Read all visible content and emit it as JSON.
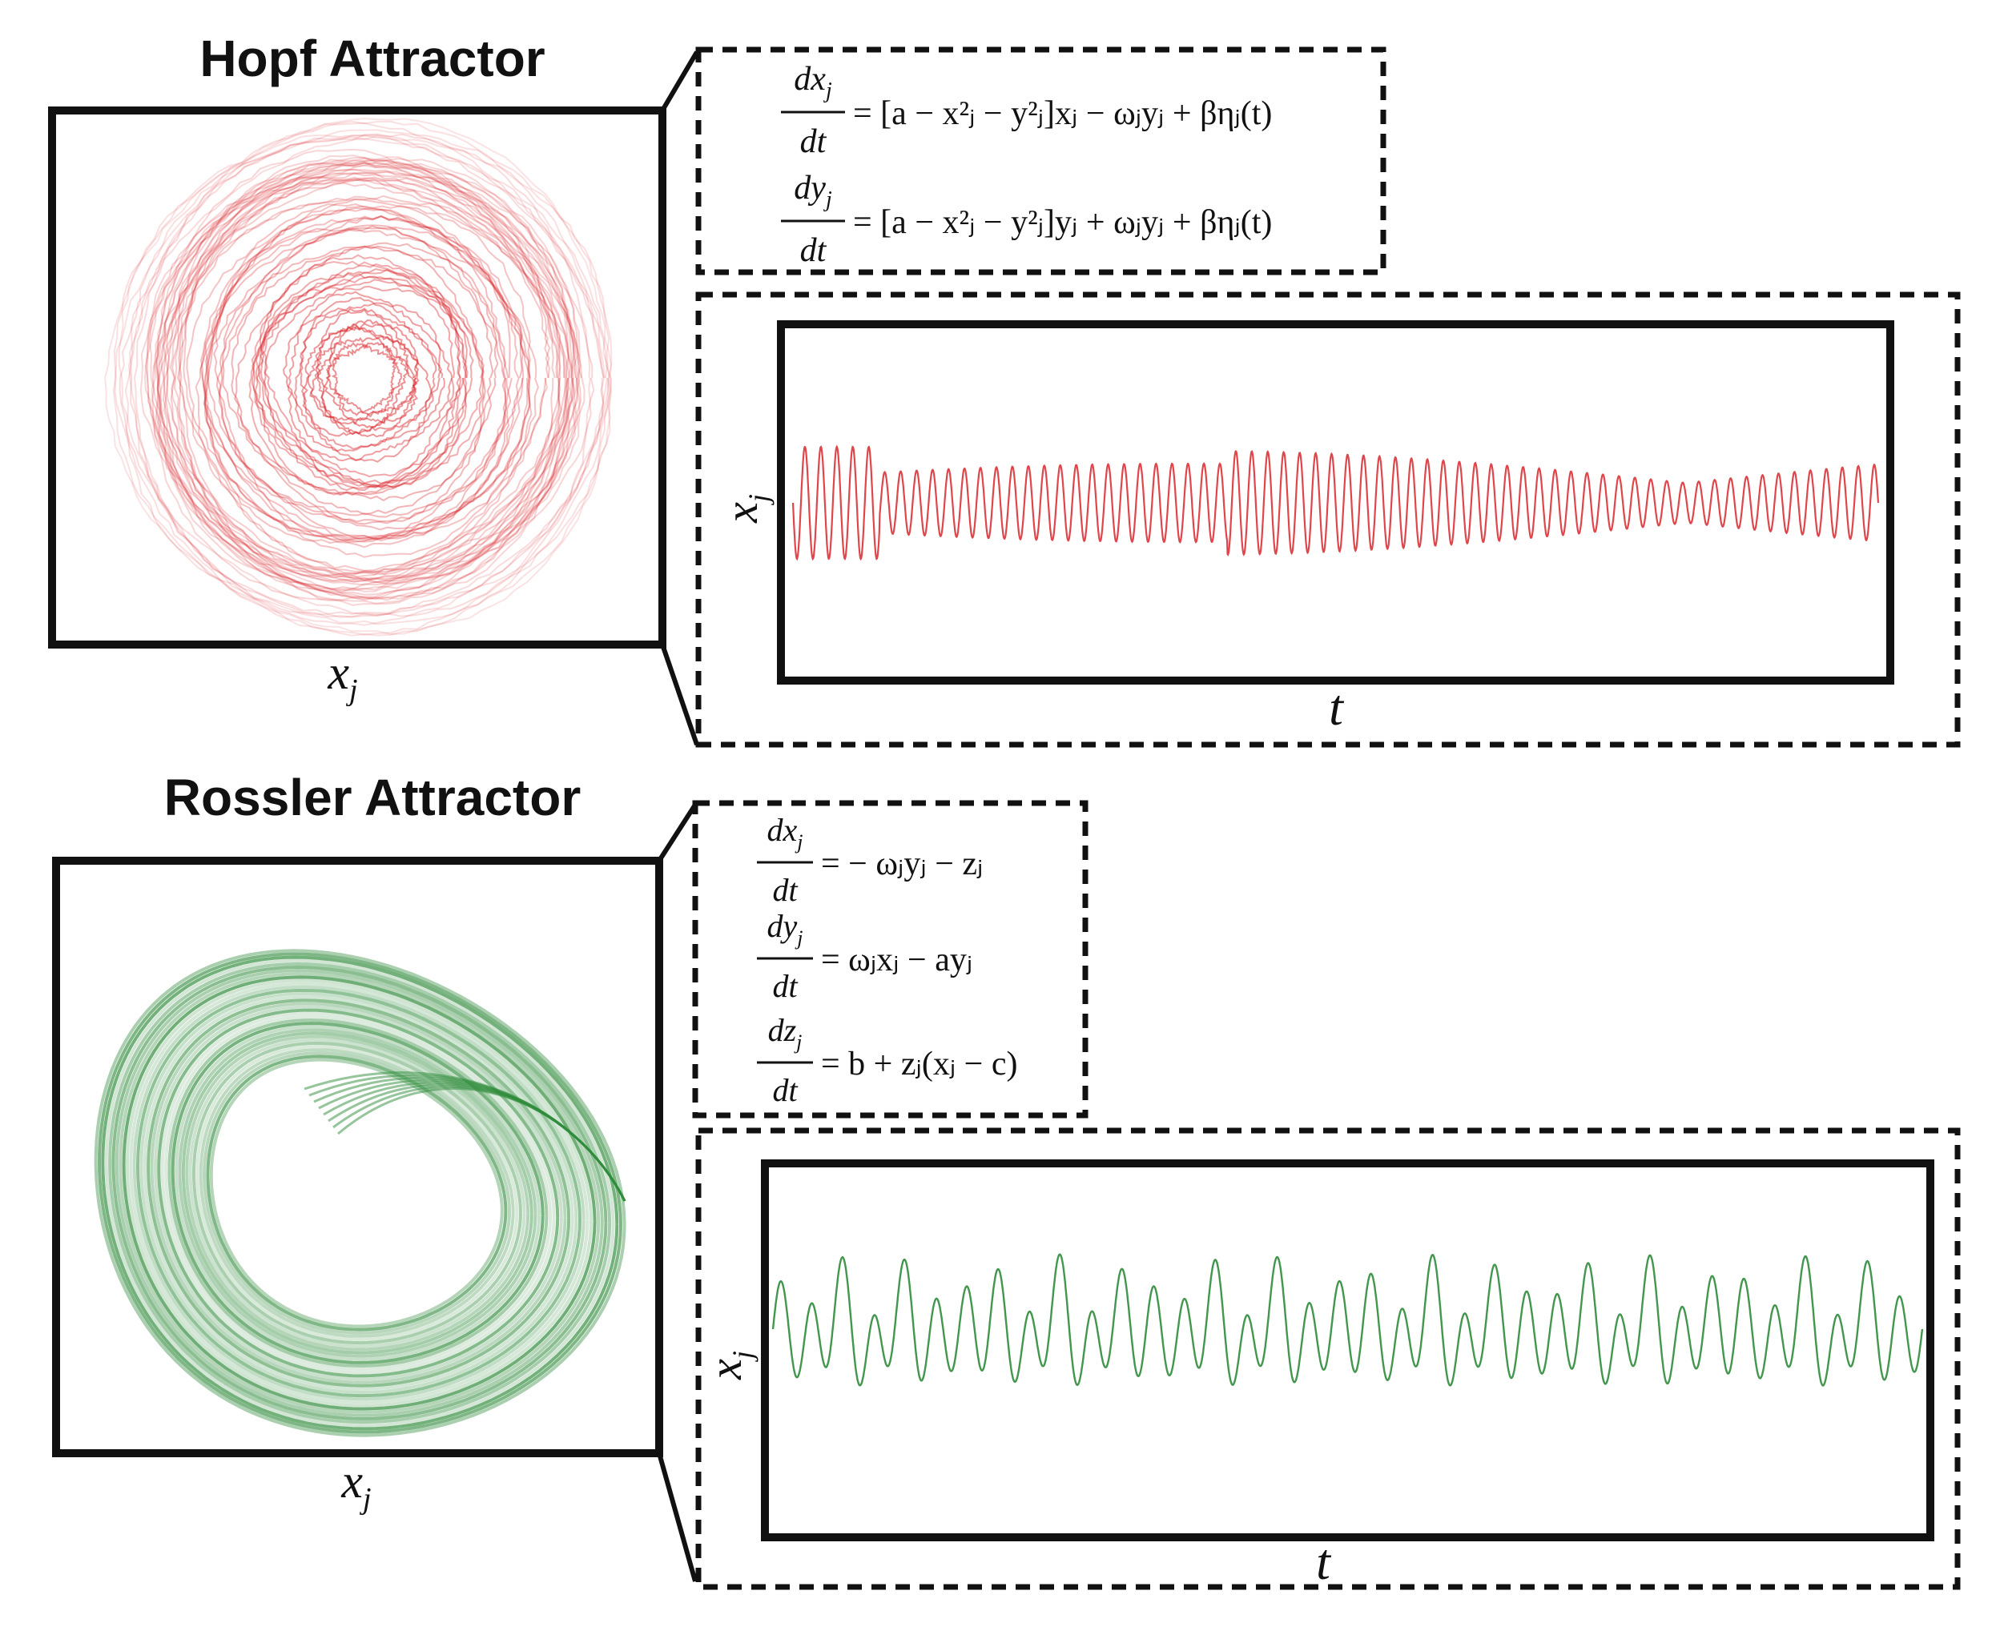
{
  "panels": [
    {
      "id": "hopf",
      "title": "Hopf Attractor",
      "axis_label_main": "x",
      "axis_label_sub": "j",
      "ts_xlabel": "t",
      "ts_ylabel_main": "x",
      "ts_ylabel_sub": "j",
      "color": "#d9262c",
      "equations": [
        {
          "num": "dx",
          "num_sub": "j",
          "den": "dt",
          "rhs": "= [a − x²ⱼ − y²ⱼ]xⱼ − ωⱼyⱼ + βηⱼ(t)"
        },
        {
          "num": "dy",
          "num_sub": "j",
          "den": "dt",
          "rhs": "= [a − x²ⱼ − y²ⱼ]yⱼ + ωⱼyⱼ + βηⱼ(t)"
        }
      ]
    },
    {
      "id": "rossler",
      "title": "Rossler Attractor",
      "axis_label_main": "x",
      "axis_label_sub": "j",
      "ts_xlabel": "t",
      "ts_ylabel_main": "x",
      "ts_ylabel_sub": "j",
      "color": "#2e8b3a",
      "equations": [
        {
          "num": "dx",
          "num_sub": "j",
          "den": "dt",
          "rhs": "= − ωⱼyⱼ − zⱼ"
        },
        {
          "num": "dy",
          "num_sub": "j",
          "den": "dt",
          "rhs": "= ωⱼxⱼ − ayⱼ"
        },
        {
          "num": "dz",
          "num_sub": "j",
          "den": "dt",
          "rhs": "= b + zⱼ(xⱼ − c)"
        }
      ]
    }
  ]
}
